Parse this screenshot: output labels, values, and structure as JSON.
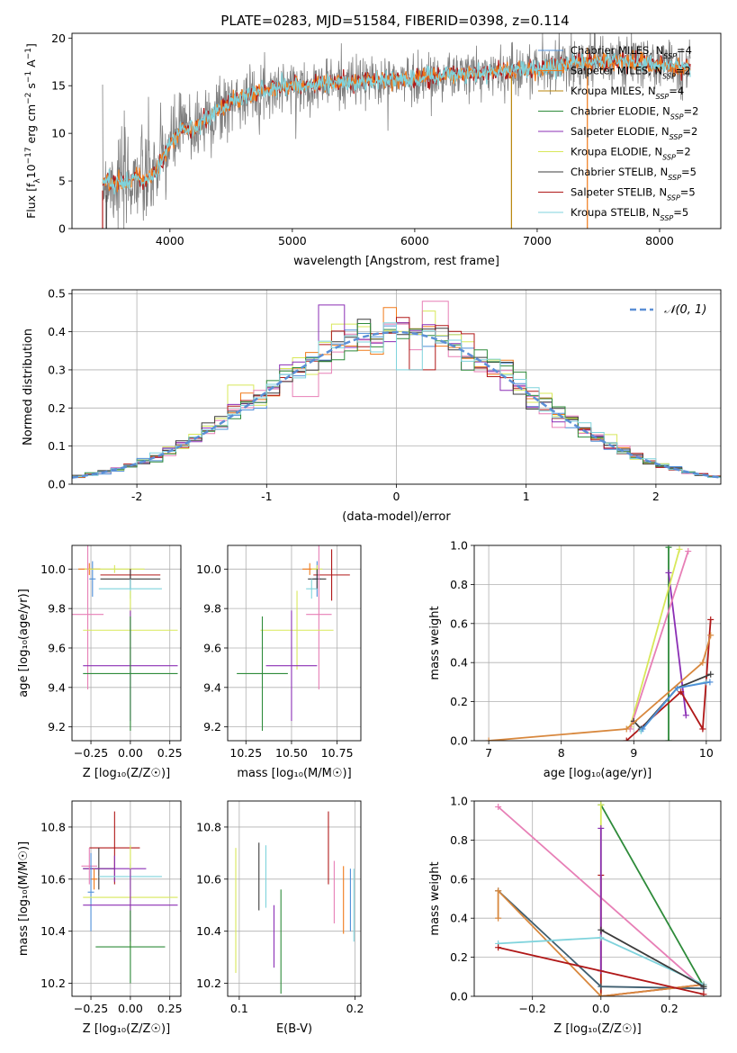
{
  "figure_title": "PLATE=0283, MJD=51584, FIBERID=0398, z=0.114",
  "colors": {
    "chabrier_miles": "#4f8fd8",
    "salpeter_miles": "#f07a1a",
    "kroupa_miles": "#b8860b",
    "chabrier_elodie": "#2e8b3a",
    "salpeter_elodie": "#8b2fb5",
    "kroupa_elodie": "#d8e85a",
    "chabrier_stelib": "#3c3c3c",
    "salpeter_stelib": "#b01818",
    "kroupa_stelib": "#7fd3dc",
    "pink": "#e77fb6",
    "orange_line": "#d8883e",
    "slate": "#3f5e6f",
    "data_gray": "#7f7f7f",
    "normal_dash": "#5b8fd6",
    "grid": "#b0b0b0"
  },
  "chart_data": [
    {
      "id": "spectrum",
      "type": "line",
      "title": "PLATE=0283, MJD=51584, FIBERID=0398, z=0.114",
      "xlabel": "wavelength [Angstrom, rest frame]",
      "ylabel_parts": [
        "Flux [f",
        "λ",
        "10",
        "−17",
        " erg cm",
        "−2",
        " s",
        "−1",
        " A",
        "−1",
        "]"
      ],
      "xlim": [
        3200,
        8500
      ],
      "ylim": [
        0,
        20.5
      ],
      "xticks": [
        4000,
        5000,
        6000,
        7000,
        8000
      ],
      "yticks": [
        0,
        5,
        10,
        15,
        20
      ],
      "grid": false,
      "legend_position": "top-right",
      "legend": [
        {
          "imf": "Chabrier",
          "lib": "MILES",
          "n": "4",
          "color_key": "chabrier_miles"
        },
        {
          "imf": "Salpeter",
          "lib": "MILES",
          "n": "2",
          "color_key": "salpeter_miles"
        },
        {
          "imf": "Kroupa",
          "lib": "MILES",
          "n": "4",
          "color_key": "kroupa_miles"
        },
        {
          "imf": "Chabrier",
          "lib": "ELODIE",
          "n": "2",
          "color_key": "chabrier_elodie"
        },
        {
          "imf": "Salpeter",
          "lib": "ELODIE",
          "n": "2",
          "color_key": "salpeter_elodie"
        },
        {
          "imf": "Kroupa",
          "lib": "ELODIE",
          "n": "2",
          "color_key": "kroupa_elodie"
        },
        {
          "imf": "Chabrier",
          "lib": "STELIB",
          "n": "5",
          "color_key": "chabrier_stelib"
        },
        {
          "imf": "Salpeter",
          "lib": "STELIB",
          "n": "5",
          "color_key": "salpeter_stelib"
        },
        {
          "imf": "Kroupa",
          "lib": "STELIB",
          "n": "5",
          "color_key": "kroupa_stelib"
        }
      ],
      "model_continuum": {
        "x": [
          3450,
          3550,
          3650,
          3720,
          3800,
          3900,
          4000,
          4100,
          4200,
          4300,
          4400,
          4500,
          4700,
          4900,
          5100,
          5300,
          5500,
          5700,
          5900,
          6100,
          6300,
          6500,
          6700,
          6900,
          7100,
          7300,
          7500,
          7700,
          7900,
          8100,
          8250
        ],
        "y": [
          5.0,
          4.9,
          4.8,
          5.6,
          4.9,
          6.2,
          8.8,
          10.6,
          10.5,
          11.6,
          12.4,
          13.3,
          14.3,
          14.9,
          15.0,
          15.3,
          15.4,
          15.5,
          15.6,
          15.9,
          16.1,
          16.3,
          16.5,
          16.7,
          17.0,
          17.4,
          17.6,
          17.6,
          17.3,
          17.0,
          16.9
        ]
      },
      "spikes": [
        {
          "x": 3450,
          "y_low": 0,
          "y_high": 4.0,
          "color_key": "salpeter_stelib"
        },
        {
          "x": 3480,
          "y_low": 0,
          "y_high": 3.5,
          "color_key": "chabrier_stelib"
        },
        {
          "x": 6790,
          "y_low": 0,
          "y_high": 16.0,
          "color_key": "kroupa_miles"
        },
        {
          "x": 7410,
          "y_low": 0,
          "y_high": 19.0,
          "color_key": "salpeter_miles"
        }
      ]
    },
    {
      "id": "residual_histogram",
      "type": "bar",
      "xlabel": "(data-model)/error",
      "ylabel": "Normed distribution",
      "xlim": [
        -2.5,
        2.5
      ],
      "ylim": [
        0,
        0.51
      ],
      "xticks": [
        -2,
        -1,
        0,
        1,
        2
      ],
      "yticks": [
        0.0,
        0.1,
        0.2,
        0.3,
        0.4,
        0.5
      ],
      "grid": true,
      "legend_position": "top-right",
      "reference_curve": {
        "label": "𝒩(0, 1)",
        "mean": 0,
        "sigma": 1,
        "style": "dashed"
      },
      "bin_width": 0.1,
      "hist_color_keys": [
        "chabrier_miles",
        "salpeter_miles",
        "kroupa_elodie",
        "pink",
        "salpeter_elodie",
        "salpeter_stelib",
        "chabrier_stelib",
        "chabrier_elodie",
        "kroupa_stelib"
      ],
      "outlier_bins": [
        {
          "x": -0.5,
          "y": 0.47,
          "color_key": "salpeter_elodie"
        },
        {
          "x": -0.4,
          "y": 0.42,
          "color_key": "kroupa_elodie"
        },
        {
          "x": 0.0,
          "y": 0.42,
          "color_key": "pink"
        },
        {
          "x": 0.2,
          "y": 0.3,
          "color_key": "salpeter_stelib"
        },
        {
          "x": 0.3,
          "y": 0.48,
          "color_key": "pink"
        },
        {
          "x": 0.1,
          "y": 0.3,
          "color_key": "kroupa_stelib"
        },
        {
          "x": -0.7,
          "y": 0.23,
          "color_key": "pink"
        },
        {
          "x": 0.8,
          "y": 0.32,
          "color_key": "chabrier_stelib"
        },
        {
          "x": 1.6,
          "y": 0.13,
          "color_key": "kroupa_elodie"
        },
        {
          "x": -1.2,
          "y": 0.26,
          "color_key": "kroupa_elodie"
        }
      ]
    },
    {
      "id": "Z_vs_age",
      "type": "scatter",
      "xlabel": "Z [log₁₀(Z/Z☉)]",
      "ylabel": "age  [log₁₀(age/yr)]",
      "xlim": [
        -0.37,
        0.32
      ],
      "ylim": [
        9.13,
        10.12
      ],
      "xticks": [
        -0.25,
        0.0,
        0.25
      ],
      "xtick_labels": [
        "−0.25",
        "0.00",
        "0.25"
      ],
      "yticks": [
        9.2,
        9.4,
        9.6,
        9.8,
        10.0
      ],
      "grid": true,
      "points": [
        {
          "x": -0.26,
          "y": 10.0,
          "xerr": 0.07,
          "yerr": 0.03,
          "color_key": "salpeter_miles"
        },
        {
          "x": -0.24,
          "y": 9.95,
          "xerr": 0.02,
          "yerr": 0.09,
          "color_key": "chabrier_miles"
        },
        {
          "x": -0.1,
          "y": 10.0,
          "xerr": 0.19,
          "yerr": 0.02,
          "color_key": "kroupa_elodie"
        },
        {
          "x": 0.0,
          "y": 9.97,
          "xerr": 0.19,
          "yerr": 0.03,
          "color_key": "salpeter_stelib"
        },
        {
          "x": 0.0,
          "y": 9.95,
          "xerr": 0.19,
          "yerr": 0.05,
          "color_key": "chabrier_stelib"
        },
        {
          "x": 0.0,
          "y": 9.9,
          "xerr": 0.2,
          "yerr": 0.05,
          "color_key": "kroupa_stelib"
        },
        {
          "x": -0.27,
          "y": 9.77,
          "xerr": 0.1,
          "yerr": 0.38,
          "color_key": "pink"
        },
        {
          "x": 0.0,
          "y": 9.69,
          "xerr": 0.3,
          "yerr": 0.2,
          "color_key": "kroupa_elodie"
        },
        {
          "x": 0.0,
          "y": 9.51,
          "xerr": 0.3,
          "yerr": 0.28,
          "color_key": "salpeter_elodie"
        },
        {
          "x": 0.0,
          "y": 9.47,
          "xerr": 0.3,
          "yerr": 0.29,
          "color_key": "chabrier_elodie"
        }
      ]
    },
    {
      "id": "mass_vs_age",
      "type": "scatter",
      "xlabel": "mass [log₁₀(M/M☉)]",
      "ylabel": "",
      "xlim": [
        10.15,
        10.88
      ],
      "ylim": [
        9.13,
        10.12
      ],
      "xticks": [
        10.25,
        10.5,
        10.75
      ],
      "xtick_labels": [
        "10.25",
        "10.50",
        "10.75"
      ],
      "yticks": [
        9.2,
        9.4,
        9.6,
        9.8,
        10.0
      ],
      "grid": true,
      "points": [
        {
          "x": 10.6,
          "y": 10.0,
          "xerr": 0.04,
          "yerr": 0.03,
          "color_key": "salpeter_miles"
        },
        {
          "x": 10.64,
          "y": 9.95,
          "xerr": 0.02,
          "yerr": 0.09,
          "color_key": "chabrier_miles"
        },
        {
          "x": 10.64,
          "y": 10.0,
          "xerr": 0.03,
          "yerr": 0.02,
          "color_key": "kroupa_elodie"
        },
        {
          "x": 10.72,
          "y": 9.97,
          "xerr": 0.1,
          "yerr": 0.13,
          "color_key": "salpeter_stelib"
        },
        {
          "x": 10.64,
          "y": 9.95,
          "xerr": 0.05,
          "yerr": 0.05,
          "color_key": "chabrier_stelib"
        },
        {
          "x": 10.61,
          "y": 9.9,
          "xerr": 0.03,
          "yerr": 0.05,
          "color_key": "kroupa_stelib"
        },
        {
          "x": 10.65,
          "y": 9.77,
          "xerr": 0.07,
          "yerr": 0.38,
          "color_key": "pink"
        },
        {
          "x": 10.53,
          "y": 9.69,
          "xerr": 0.2,
          "yerr": 0.2,
          "color_key": "kroupa_elodie"
        },
        {
          "x": 10.5,
          "y": 9.51,
          "xerr": 0.14,
          "yerr": 0.28,
          "color_key": "salpeter_elodie"
        },
        {
          "x": 10.34,
          "y": 9.47,
          "xerr": 0.14,
          "yerr": 0.29,
          "color_key": "chabrier_elodie"
        }
      ]
    },
    {
      "id": "age_vs_massweight",
      "type": "line",
      "xlabel": "age  [log₁₀(age/yr)]",
      "ylabel": "mass weight",
      "xlim": [
        6.8,
        10.2
      ],
      "ylim": [
        0,
        1.0
      ],
      "xticks": [
        7,
        8,
        9,
        10
      ],
      "yticks": [
        0.0,
        0.2,
        0.4,
        0.6,
        0.8,
        1.0
      ],
      "grid": true,
      "series": [
        {
          "color_key": "chabrier_elodie",
          "x": [
            9.48,
            9.48
          ],
          "y": [
            0.0,
            0.99
          ]
        },
        {
          "color_key": "salpeter_elodie",
          "x": [
            9.48,
            9.72
          ],
          "y": [
            0.86,
            0.13
          ]
        },
        {
          "color_key": "kroupa_elodie",
          "x": [
            8.95,
            9.63
          ],
          "y": [
            0.07,
            0.98
          ]
        },
        {
          "color_key": "pink",
          "x": [
            8.95,
            9.75
          ],
          "y": [
            0.06,
            0.97
          ]
        },
        {
          "color_key": "salpeter_stelib",
          "x": [
            8.9,
            9.65,
            9.95,
            10.06
          ],
          "y": [
            0.0,
            0.25,
            0.06,
            0.62
          ]
        },
        {
          "color_key": "chabrier_stelib",
          "x": [
            9.0,
            9.1,
            9.6,
            10.06
          ],
          "y": [
            0.1,
            0.06,
            0.27,
            0.34
          ]
        },
        {
          "color_key": "kroupa_stelib",
          "x": [
            9.1,
            9.6,
            10.0
          ],
          "y": [
            0.05,
            0.27,
            0.3
          ]
        },
        {
          "color_key": "chabrier_miles",
          "x": [
            9.12,
            9.6,
            10.05
          ],
          "y": [
            0.06,
            0.27,
            0.3
          ]
        },
        {
          "color_key": "orange_line",
          "x": [
            7.0,
            8.9,
            9.95,
            10.06
          ],
          "y": [
            0.0,
            0.06,
            0.4,
            0.54
          ]
        }
      ]
    },
    {
      "id": "Z_vs_mass",
      "type": "scatter",
      "xlabel": "Z [log₁₀(Z/Z☉)]",
      "ylabel": "mass [log₁₀(M/M☉)]",
      "xlim": [
        -0.37,
        0.32
      ],
      "ylim": [
        10.15,
        10.9
      ],
      "xticks": [
        -0.25,
        0.0,
        0.25
      ],
      "xtick_labels": [
        "−0.25",
        "0.00",
        "0.25"
      ],
      "yticks": [
        10.2,
        10.4,
        10.6,
        10.8
      ],
      "grid": true,
      "points": [
        {
          "x": -0.1,
          "y": 10.72,
          "xerr": 0.16,
          "yerr": 0.14,
          "color_key": "salpeter_stelib"
        },
        {
          "x": -0.2,
          "y": 10.64,
          "xerr": 0.1,
          "yerr": 0.08,
          "color_key": "chabrier_stelib"
        },
        {
          "x": -0.1,
          "y": 10.64,
          "xerr": 0.2,
          "yerr": 0.05,
          "color_key": "salpeter_elodie"
        },
        {
          "x": 0.0,
          "y": 10.61,
          "xerr": 0.2,
          "yerr": 0.05,
          "color_key": "kroupa_stelib"
        },
        {
          "x": -0.26,
          "y": 10.65,
          "xerr": 0.05,
          "yerr": 0.07,
          "color_key": "pink"
        },
        {
          "x": -0.23,
          "y": 10.6,
          "xerr": 0.02,
          "yerr": 0.04,
          "color_key": "salpeter_miles"
        },
        {
          "x": -0.25,
          "y": 10.55,
          "xerr": 0.02,
          "yerr": 0.15,
          "color_key": "chabrier_miles"
        },
        {
          "x": 0.0,
          "y": 10.53,
          "xerr": 0.3,
          "yerr": 0.2,
          "color_key": "kroupa_elodie"
        },
        {
          "x": 0.0,
          "y": 10.5,
          "xerr": 0.3,
          "yerr": 0.14,
          "color_key": "salpeter_elodie"
        },
        {
          "x": 0.0,
          "y": 10.34,
          "xerr": 0.22,
          "yerr": 0.14,
          "color_key": "chabrier_elodie"
        }
      ]
    },
    {
      "id": "EBV_vs_mass",
      "type": "scatter",
      "xlabel": "E(B-V)",
      "ylabel": "",
      "xlim": [
        0.09,
        0.205
      ],
      "ylim": [
        10.15,
        10.9
      ],
      "xticks": [
        0.1,
        0.2
      ],
      "xtick_labels": [
        "0.1",
        "0.2"
      ],
      "yticks": [
        10.2,
        10.4,
        10.6,
        10.8
      ],
      "grid": true,
      "points": [
        {
          "x": 0.097,
          "y": 10.48,
          "yerr": 0.24,
          "color_key": "kroupa_elodie"
        },
        {
          "x": 0.117,
          "y": 10.61,
          "yerr": 0.13,
          "color_key": "chabrier_stelib"
        },
        {
          "x": 0.123,
          "y": 10.61,
          "yerr": 0.12,
          "color_key": "kroupa_stelib"
        },
        {
          "x": 0.13,
          "y": 10.38,
          "yerr": 0.12,
          "color_key": "salpeter_elodie"
        },
        {
          "x": 0.136,
          "y": 10.36,
          "yerr": 0.2,
          "color_key": "chabrier_elodie"
        },
        {
          "x": 0.177,
          "y": 10.72,
          "yerr": 0.14,
          "color_key": "salpeter_stelib"
        },
        {
          "x": 0.182,
          "y": 10.55,
          "yerr": 0.12,
          "color_key": "pink"
        },
        {
          "x": 0.19,
          "y": 10.52,
          "yerr": 0.13,
          "color_key": "salpeter_miles"
        },
        {
          "x": 0.196,
          "y": 10.52,
          "yerr": 0.12,
          "color_key": "chabrier_miles"
        },
        {
          "x": 0.199,
          "y": 10.5,
          "yerr": 0.14,
          "color_key": "kroupa_stelib"
        }
      ]
    },
    {
      "id": "Z_vs_massweight",
      "type": "line",
      "xlabel": "Z [log₁₀(Z/Z☉)]",
      "ylabel": "mass weight",
      "xlim": [
        -0.37,
        0.35
      ],
      "ylim": [
        0,
        1.0
      ],
      "xticks": [
        -0.2,
        0.0,
        0.2
      ],
      "xtick_labels": [
        "−0.2",
        "0.0",
        "0.2"
      ],
      "yticks": [
        0.0,
        0.2,
        0.4,
        0.6,
        0.8,
        1.0
      ],
      "grid": true,
      "series": [
        {
          "color_key": "pink",
          "x": [
            -0.3,
            0.3
          ],
          "y": [
            0.97,
            0.04
          ]
        },
        {
          "color_key": "chabrier_elodie",
          "x": [
            0.0,
            0.3
          ],
          "y": [
            0.98,
            0.05
          ]
        },
        {
          "color_key": "kroupa_elodie",
          "x": [
            0.0,
            0.0
          ],
          "y": [
            0.0,
            0.98
          ]
        },
        {
          "color_key": "salpeter_stelib",
          "x": [
            0.0,
            0.0,
            0.3
          ],
          "y": [
            0.62,
            0.0,
            0.06
          ]
        },
        {
          "color_key": "salpeter_elodie",
          "x": [
            0.0,
            0.0
          ],
          "y": [
            0.13,
            0.86
          ]
        },
        {
          "color_key": "slate",
          "x": [
            -0.3,
            0.0,
            0.3
          ],
          "y": [
            0.54,
            0.05,
            0.04
          ]
        },
        {
          "color_key": "orange_line",
          "x": [
            -0.3,
            -0.3,
            0.0,
            0.3
          ],
          "y": [
            0.4,
            0.54,
            0.0,
            0.06
          ]
        },
        {
          "color_key": "kroupa_stelib",
          "x": [
            -0.3,
            0.0,
            0.3
          ],
          "y": [
            0.27,
            0.3,
            0.06
          ]
        },
        {
          "color_key": "chabrier_stelib",
          "x": [
            0.0,
            0.3
          ],
          "y": [
            0.34,
            0.05
          ]
        },
        {
          "color_key": "salpeter_stelib",
          "x": [
            -0.3,
            0.3
          ],
          "y": [
            0.25,
            0.01
          ]
        }
      ]
    }
  ]
}
